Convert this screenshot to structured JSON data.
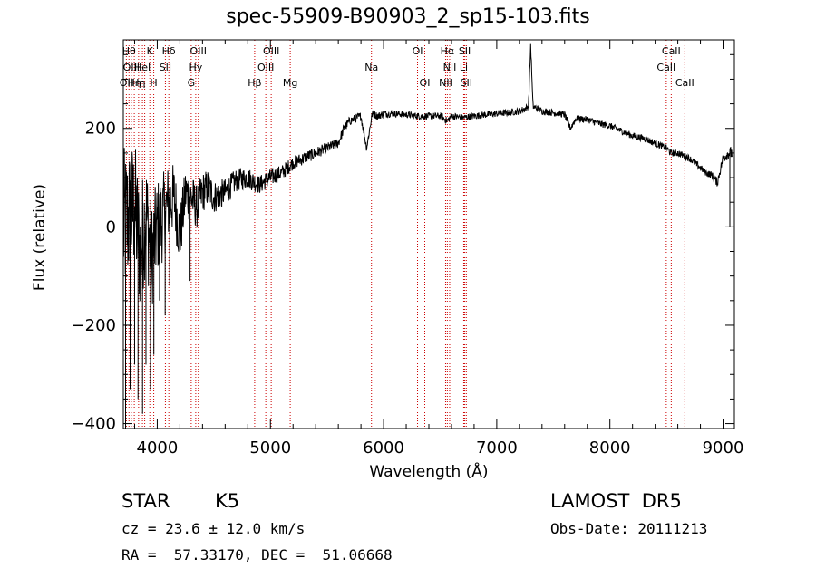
{
  "chart_data": {
    "type": "line",
    "title": "spec-55909-B90903_2_sp15-103.fits",
    "xlabel": "Wavelength (Å)",
    "ylabel": "Flux (relative)",
    "xlim": [
      3700,
      9100
    ],
    "ylim": [
      -410,
      380
    ],
    "xticks": [
      4000,
      5000,
      6000,
      7000,
      8000,
      9000
    ],
    "yticks": [
      -400,
      -200,
      0,
      200
    ],
    "line_color": "#000000",
    "marker_color": "#cc0000",
    "spectrum": {
      "x": [
        3700,
        3750,
        3800,
        3850,
        3900,
        3950,
        4000,
        4050,
        4100,
        4150,
        4200,
        4250,
        4300,
        4350,
        4400,
        4450,
        4500,
        4600,
        4700,
        4800,
        4900,
        5000,
        5100,
        5200,
        5300,
        5400,
        5500,
        5600,
        5650,
        5700,
        5800,
        5850,
        5900,
        5950,
        6000,
        6100,
        6200,
        6300,
        6400,
        6500,
        6563,
        6600,
        6700,
        6800,
        6900,
        7000,
        7100,
        7200,
        7250,
        7280,
        7300,
        7320,
        7400,
        7500,
        7600,
        7650,
        7700,
        7800,
        7900,
        8000,
        8100,
        8200,
        8300,
        8400,
        8500,
        8542,
        8600,
        8700,
        8800,
        8850,
        8900,
        8950,
        9000,
        9050,
        9100
      ],
      "y": [
        0,
        20,
        40,
        -50,
        30,
        -60,
        0,
        20,
        50,
        60,
        -20,
        70,
        60,
        40,
        70,
        80,
        60,
        70,
        95,
        100,
        85,
        100,
        110,
        130,
        140,
        150,
        160,
        170,
        200,
        215,
        225,
        160,
        230,
        225,
        230,
        230,
        228,
        225,
        225,
        225,
        215,
        225,
        222,
        225,
        228,
        230,
        232,
        235,
        240,
        245,
        370,
        245,
        235,
        232,
        228,
        200,
        220,
        218,
        210,
        205,
        195,
        185,
        180,
        170,
        160,
        150,
        150,
        140,
        120,
        110,
        105,
        90,
        140,
        150,
        150
      ],
      "noise_amp": [
        160,
        150,
        140,
        130,
        120,
        110,
        100,
        90,
        80,
        70,
        62,
        55,
        50,
        45,
        42,
        38,
        34,
        28,
        24,
        22,
        19,
        18,
        16,
        14,
        13,
        12,
        11,
        10,
        10,
        9,
        9,
        8,
        8,
        8,
        8,
        7,
        7,
        7,
        7,
        7,
        7,
        7,
        7,
        7,
        7,
        7,
        7,
        7,
        7,
        7,
        7,
        7,
        7,
        7,
        7,
        7,
        7,
        7,
        7,
        7,
        7,
        7,
        7,
        7,
        7,
        7,
        7,
        7,
        7,
        7,
        8,
        9,
        10,
        12,
        14
      ]
    },
    "spikes": [
      {
        "x": 3720,
        "y": -420
      },
      {
        "x": 3760,
        "y": -330
      },
      {
        "x": 3800,
        "y": -280
      },
      {
        "x": 3830,
        "y": -350
      },
      {
        "x": 3870,
        "y": -380
      },
      {
        "x": 3900,
        "y": -280
      },
      {
        "x": 3940,
        "y": -330
      },
      {
        "x": 3970,
        "y": -260
      },
      {
        "x": 4020,
        "y": -150
      },
      {
        "x": 4070,
        "y": -180
      },
      {
        "x": 4110,
        "y": -120
      },
      {
        "x": 4290,
        "y": -110
      },
      {
        "x": 9060,
        "y": 0
      }
    ],
    "line_markers": [
      {
        "x": 3727,
        "label": "OII",
        "row": 3
      },
      {
        "x": 3750,
        "label": "Hθ",
        "row": 1
      },
      {
        "x": 3771,
        "label": "OIII",
        "row": 2
      },
      {
        "x": 3797,
        "label": "Hη",
        "row": 3
      },
      {
        "x": 3835,
        "label": "Hη",
        "row": 3
      },
      {
        "x": 3869,
        "label": "HeI",
        "row": 2
      },
      {
        "x": 3889,
        "label": "",
        "row": 0
      },
      {
        "x": 3934,
        "label": "K",
        "row": 1
      },
      {
        "x": 3969,
        "label": "H",
        "row": 3
      },
      {
        "x": 4072,
        "label": "SII",
        "row": 2
      },
      {
        "x": 4102,
        "label": "Hδ",
        "row": 1
      },
      {
        "x": 4300,
        "label": "G",
        "row": 3
      },
      {
        "x": 4340,
        "label": "Hγ",
        "row": 2
      },
      {
        "x": 4363,
        "label": "OIII",
        "row": 1
      },
      {
        "x": 4861,
        "label": "Hβ",
        "row": 3
      },
      {
        "x": 4959,
        "label": "OIII",
        "row": 2
      },
      {
        "x": 5007,
        "label": "OIII",
        "row": 1
      },
      {
        "x": 5175,
        "label": "Mg",
        "row": 3
      },
      {
        "x": 5893,
        "label": "Na",
        "row": 2
      },
      {
        "x": 6300,
        "label": "OI",
        "row": 1
      },
      {
        "x": 6364,
        "label": "OI",
        "row": 3
      },
      {
        "x": 6548,
        "label": "NII",
        "row": 3
      },
      {
        "x": 6563,
        "label": "Hα",
        "row": 1
      },
      {
        "x": 6584,
        "label": "NII",
        "row": 2
      },
      {
        "x": 6708,
        "label": "Li",
        "row": 2
      },
      {
        "x": 6717,
        "label": "SII",
        "row": 1
      },
      {
        "x": 6731,
        "label": "SII",
        "row": 3
      },
      {
        "x": 8498,
        "label": "CaII",
        "row": 2
      },
      {
        "x": 8542,
        "label": "CaII",
        "row": 1
      },
      {
        "x": 8662,
        "label": "CaII",
        "row": 3
      }
    ]
  },
  "info": {
    "object_type": "STAR",
    "subclass": "K5",
    "survey": "LAMOST  DR5",
    "redshift": "cz = 23.6 ± 12.0 km/s",
    "obs_date": "Obs-Date: 20111213",
    "coordinates": "RA =  57.33170, DEC =  51.06668"
  }
}
